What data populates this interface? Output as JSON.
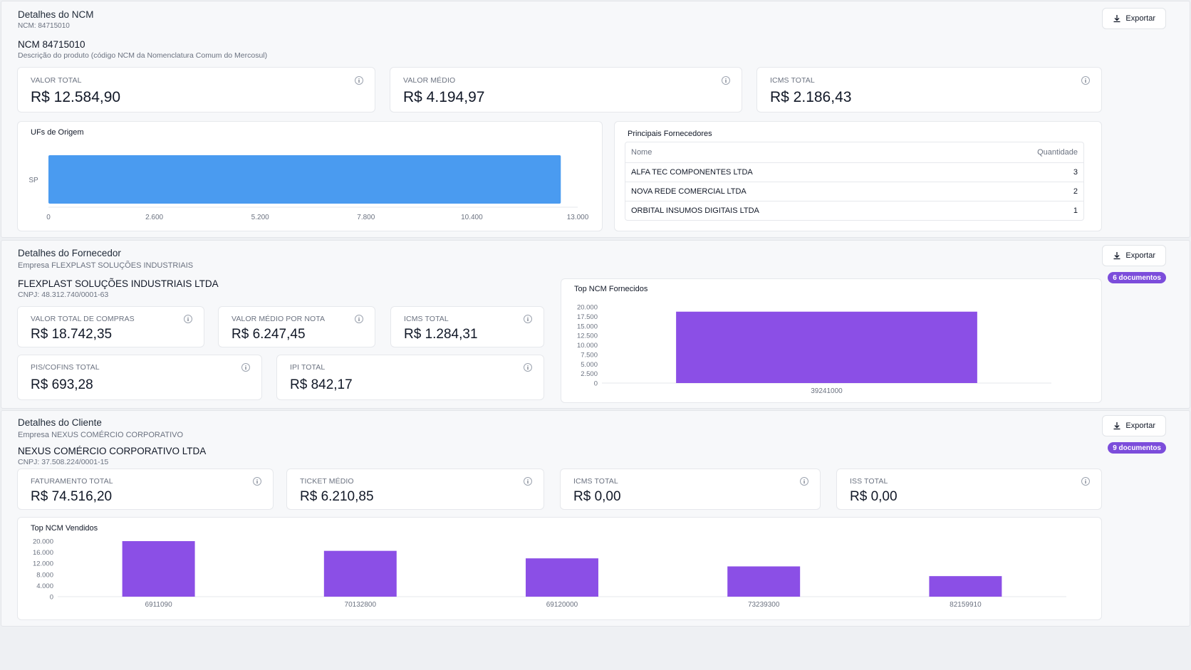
{
  "ncm_section": {
    "title": "Detalhes do NCM",
    "subtitle": "NCM: 84715010",
    "export_label": "Exportar",
    "entity_title": "NCM 84715010",
    "entity_desc": "Descrição do produto (código NCM da Nomenclatura Comum do Mercosul)",
    "kpis": [
      {
        "label": "VALOR TOTAL",
        "value": "R$ 12.584,90"
      },
      {
        "label": "VALOR MÉDIO",
        "value": "R$ 4.194,97"
      },
      {
        "label": "ICMS TOTAL",
        "value": "R$ 2.186,43"
      }
    ],
    "uf_chart": {
      "title": "UFs de Origem",
      "chart_data": {
        "type": "bar",
        "orientation": "horizontal",
        "categories": [
          "SP"
        ],
        "values": [
          12584.9
        ],
        "xlim": [
          0,
          13000
        ],
        "ticks": [
          "0",
          "2.600",
          "5.200",
          "7.800",
          "10.400",
          "13.000"
        ],
        "color": "#4a9bf0"
      }
    },
    "suppliers": {
      "title": "Principais Fornecedores",
      "col_name": "Nome",
      "col_qty": "Quantidade",
      "rows": [
        {
          "name": "ALFA TEC COMPONENTES LTDA",
          "qty": "3"
        },
        {
          "name": "NOVA REDE COMERCIAL LTDA",
          "qty": "2"
        },
        {
          "name": "ORBITAL INSUMOS DIGITAIS LTDA",
          "qty": "1"
        }
      ]
    }
  },
  "supplier_section": {
    "title": "Detalhes do Fornecedor",
    "subtitle": "Empresa FLEXPLAST SOLUÇÕES INDUSTRIAIS",
    "export_label": "Exportar",
    "badge": "6 documentos",
    "entity_title": "FLEXPLAST SOLUÇÕES INDUSTRIAIS LTDA",
    "entity_desc": "CNPJ: 48.312.740/0001-63",
    "kpis": [
      {
        "label": "VALOR TOTAL DE COMPRAS",
        "value": "R$ 18.742,35"
      },
      {
        "label": "VALOR MÉDIO POR NOTA",
        "value": "R$ 6.247,45"
      },
      {
        "label": "ICMS TOTAL",
        "value": "R$ 1.284,31"
      },
      {
        "label": "PIS/COFINS TOTAL",
        "value": "R$ 693,28"
      },
      {
        "label": "IPI TOTAL",
        "value": "R$ 842,17"
      }
    ],
    "top_ncm": {
      "title": "Top NCM Fornecidos",
      "chart_data": {
        "type": "bar",
        "categories": [
          "39241000"
        ],
        "values": [
          18742.35
        ],
        "ylim": [
          0,
          20000
        ],
        "ticks": [
          "0",
          "2.500",
          "5.000",
          "7.500",
          "10.000",
          "12.500",
          "15.000",
          "17.500",
          "20.000"
        ],
        "color": "#8b4fe6"
      }
    }
  },
  "client_section": {
    "title": "Detalhes do Cliente",
    "subtitle": "Empresa NEXUS COMÉRCIO CORPORATIVO",
    "export_label": "Exportar",
    "badge": "9 documentos",
    "entity_title": "NEXUS COMÉRCIO CORPORATIVO LTDA",
    "entity_desc": "CNPJ: 37.508.224/0001-15",
    "kpis": [
      {
        "label": "FATURAMENTO TOTAL",
        "value": "R$ 74.516,20"
      },
      {
        "label": "TICKET MÉDIO",
        "value": "R$ 6.210,85"
      },
      {
        "label": "ICMS TOTAL",
        "value": "R$ 0,00"
      },
      {
        "label": "ISS TOTAL",
        "value": "R$ 0,00"
      }
    ],
    "top_ncm": {
      "title": "Top NCM Vendidos",
      "chart_data": {
        "type": "bar",
        "categories": [
          "6911090",
          "70132800",
          "69120000",
          "73239300",
          "82159910"
        ],
        "values": [
          20000,
          16500,
          13800,
          10900,
          7400
        ],
        "ylim": [
          0,
          20000
        ],
        "ticks": [
          "0",
          "4.000",
          "8.000",
          "12.000",
          "16.000",
          "20.000"
        ],
        "color": "#8b4fe6"
      }
    }
  }
}
